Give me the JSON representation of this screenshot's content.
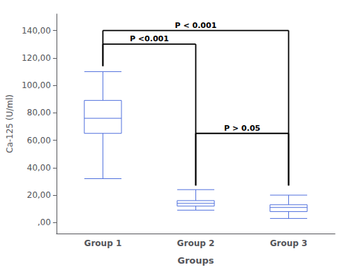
{
  "chart_data": {
    "type": "boxplot",
    "xlabel": "Groups",
    "ylabel": "Ca-125 (U/ml)",
    "categories": [
      "Group 1",
      "Group 2",
      "Group 3"
    ],
    "values": [
      {
        "whislo": 32,
        "q1": 65,
        "median": 76,
        "q3": 89,
        "whishi": 110
      },
      {
        "whislo": 9,
        "q1": 12,
        "median": 14,
        "q3": 16,
        "whishi": 24
      },
      {
        "whislo": 3,
        "q1": 8,
        "median": 11,
        "q3": 13,
        "whishi": 20
      }
    ],
    "ylim": [
      -8,
      152
    ],
    "yticks": [
      {
        "value": 0,
        "label": ",00"
      },
      {
        "value": 20,
        "label": "20,00"
      },
      {
        "value": 40,
        "label": "40,00"
      },
      {
        "value": 60,
        "label": "60,00"
      },
      {
        "value": 80,
        "label": "80,00"
      },
      {
        "value": 100,
        "label": "100,00"
      },
      {
        "value": 120,
        "label": "120,00"
      },
      {
        "value": 140,
        "label": "140,00"
      }
    ],
    "grid": false,
    "annotations": [
      {
        "text": "P <0.001",
        "x1": "Group 1",
        "x2": "Group 2",
        "y": 130,
        "y_drop1": 114,
        "y_drop2": 27
      },
      {
        "text": "P < 0.001",
        "x1": "Group 1",
        "x2": "Group 3",
        "y": 140,
        "y_drop1": 114,
        "y_drop2": 27
      },
      {
        "text": "P > 0.05",
        "x1": "Group 2",
        "x2": "Group 3",
        "y": 65,
        "y_drop1": 27,
        "y_drop2": 27
      }
    ]
  }
}
